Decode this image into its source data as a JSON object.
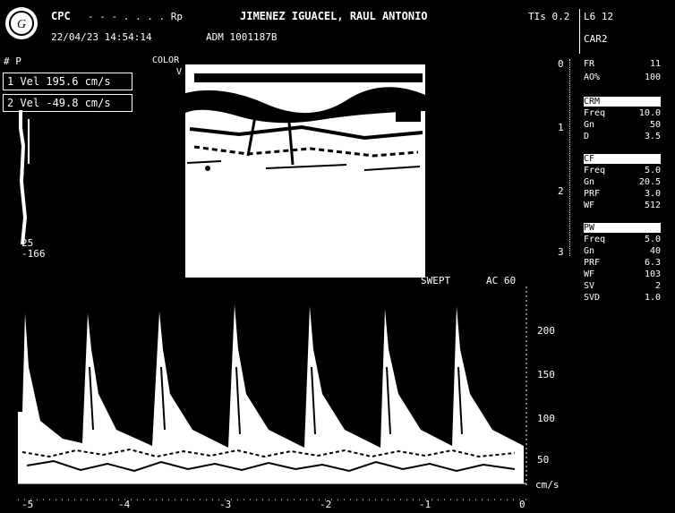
{
  "header": {
    "logo": "ge-logo",
    "system": "CPC",
    "system_suffix": "- - - . . . . Rp",
    "datetime": "22/04/23 14:54:14",
    "accession": "ADM 1001187B",
    "patient": "JIMENEZ IGUACEL, RAUL ANTONIO",
    "ti": "TIs 0.2",
    "probe": "L6 12",
    "preset": "CAR2"
  },
  "doppler_trace_box": {
    "label": "# P",
    "measurements": [
      "1 Vel 195.6 cm/s",
      "2 Vel -49.8 cm/s"
    ],
    "scale_top": "25",
    "scale_bottom": "-166"
  },
  "bmode": {
    "label": "COLOR",
    "label2": "V"
  },
  "depth_scale": [
    "0",
    "1",
    "2",
    "3"
  ],
  "params": {
    "general": [
      [
        "FR",
        "11"
      ],
      [
        "AO%",
        "100"
      ]
    ],
    "crm": {
      "title": "CRM",
      "rows": [
        [
          "Freq",
          "10.0"
        ],
        [
          "Gn",
          "50"
        ],
        [
          "D",
          "3.5"
        ]
      ]
    },
    "cf": {
      "title": "CF",
      "rows": [
        [
          "Freq",
          "5.0"
        ],
        [
          "Gn",
          "20.5"
        ],
        [
          "PRF",
          "3.0"
        ],
        [
          "WF",
          "512"
        ]
      ]
    },
    "pw": {
      "title": "PW",
      "rows": [
        [
          "Freq",
          "5.0"
        ],
        [
          "Gn",
          "40"
        ],
        [
          "PRF",
          "6.3"
        ],
        [
          "WF",
          "103"
        ],
        [
          "SV",
          "2"
        ],
        [
          "SVD",
          "1.0"
        ]
      ]
    }
  },
  "spectral": {
    "mode_label": "SWEPT",
    "angle_label": "AC 60",
    "y_ticks": [
      "200",
      "150",
      "100",
      "50",
      "cm/s"
    ],
    "x_ticks": [
      "-5",
      "-4",
      "-3",
      "-2",
      "-1",
      "0"
    ],
    "colors": {
      "trace": "#ffffff",
      "background": "#000000"
    }
  }
}
